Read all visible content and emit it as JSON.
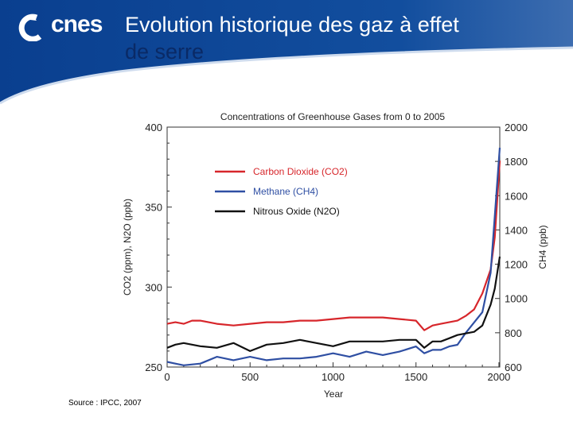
{
  "header": {
    "logo_text": "cnes",
    "title_line1": "Evolution historique des gaz à effet",
    "title_line2": "de serre"
  },
  "source": "Source : IPCC, 2007",
  "colors": {
    "banner": "#0a3f8f",
    "co2": "#d7262b",
    "ch4": "#2f4fa3",
    "n2o": "#111111"
  },
  "chart_data": {
    "type": "line",
    "title": "Concentrations of Greenhouse Gases from 0 to 2005",
    "xlabel": "Year",
    "ylabel_left": "CO2 (ppm), N2O (ppb)",
    "ylabel_right": "CH4 (ppb)",
    "xlim": [
      0,
      2005
    ],
    "ylim_left": [
      250,
      400
    ],
    "ylim_right": [
      600,
      2000
    ],
    "xticks": [
      "0",
      "500",
      "1000",
      "1500",
      "2000"
    ],
    "yticks_left": [
      "250",
      "300",
      "350",
      "400"
    ],
    "yticks_right": [
      "600",
      "800",
      "1000",
      "1200",
      "1400",
      "1600",
      "1800",
      "2000"
    ],
    "legend_position": "upper-left",
    "series": [
      {
        "name": "Carbon Dioxide (CO2)",
        "axis": "left",
        "x": [
          0,
          50,
          100,
          150,
          200,
          300,
          400,
          500,
          600,
          700,
          800,
          900,
          1000,
          1100,
          1200,
          1300,
          1400,
          1500,
          1550,
          1600,
          1650,
          1700,
          1750,
          1800,
          1850,
          1900,
          1950,
          1975,
          2005
        ],
        "values": [
          277,
          278,
          277,
          279,
          279,
          277,
          276,
          277,
          278,
          278,
          279,
          279,
          280,
          281,
          281,
          281,
          280,
          279,
          273,
          276,
          277,
          278,
          279,
          282,
          286,
          296,
          311,
          331,
          379
        ]
      },
      {
        "name": "Methane (CH4)",
        "axis": "right",
        "x": [
          0,
          50,
          100,
          200,
          300,
          400,
          500,
          600,
          700,
          800,
          900,
          1000,
          1100,
          1200,
          1300,
          1400,
          1500,
          1550,
          1600,
          1650,
          1700,
          1750,
          1800,
          1850,
          1900,
          1950,
          1975,
          2005
        ],
        "values": [
          630,
          620,
          610,
          620,
          660,
          640,
          660,
          640,
          650,
          650,
          660,
          680,
          660,
          690,
          670,
          690,
          720,
          680,
          700,
          700,
          720,
          730,
          800,
          860,
          920,
          1150,
          1480,
          1880
        ]
      },
      {
        "name": "Nitrous Oxide (N2O)",
        "axis": "left",
        "x": [
          0,
          50,
          100,
          200,
          300,
          400,
          500,
          600,
          700,
          800,
          900,
          1000,
          1100,
          1200,
          1300,
          1400,
          1500,
          1550,
          1600,
          1650,
          1700,
          1750,
          1800,
          1850,
          1900,
          1950,
          1975,
          2005
        ],
        "values": [
          262,
          264,
          265,
          263,
          262,
          265,
          260,
          264,
          265,
          267,
          265,
          263,
          266,
          266,
          266,
          267,
          267,
          262,
          266,
          266,
          268,
          270,
          271,
          272,
          276,
          289,
          299,
          319
        ]
      }
    ]
  }
}
